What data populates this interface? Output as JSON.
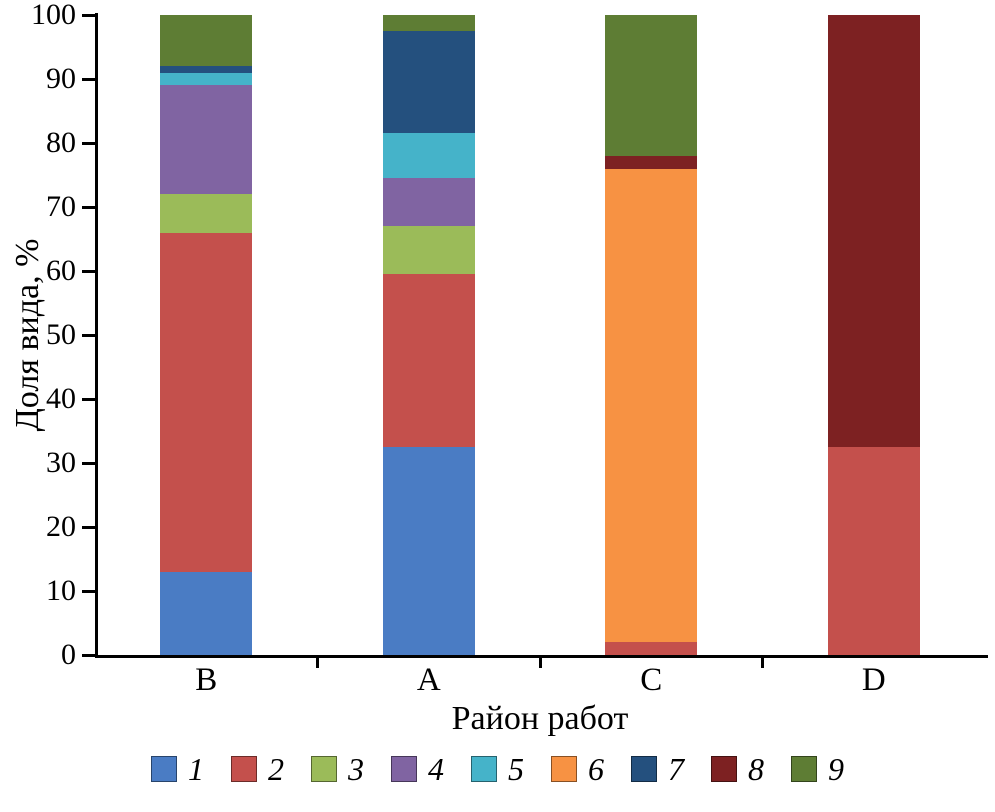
{
  "chart_data": {
    "type": "bar",
    "stacked": true,
    "title": "",
    "xlabel": "Район работ",
    "ylabel": "Доля вида, %",
    "ylim": [
      0,
      100
    ],
    "yticks": [
      0,
      10,
      20,
      30,
      40,
      50,
      60,
      70,
      80,
      90,
      100
    ],
    "grid": false,
    "legend_position": "bottom",
    "categories": [
      "B",
      "A",
      "C",
      "D"
    ],
    "series": [
      {
        "name": "1",
        "color": "#4a7cc4",
        "values": [
          13,
          32.5,
          0,
          0
        ]
      },
      {
        "name": "2",
        "color": "#c4504c",
        "values": [
          53,
          27,
          2,
          32.5
        ]
      },
      {
        "name": "3",
        "color": "#9bbb59",
        "values": [
          6,
          7.5,
          0,
          0
        ]
      },
      {
        "name": "4",
        "color": "#8064a2",
        "values": [
          17,
          7.5,
          0,
          0
        ]
      },
      {
        "name": "5",
        "color": "#45b3c9",
        "values": [
          2,
          7,
          0,
          0
        ]
      },
      {
        "name": "6",
        "color": "#f79243",
        "values": [
          0,
          0,
          74,
          0
        ]
      },
      {
        "name": "7",
        "color": "#24507e",
        "values": [
          1,
          16,
          0,
          0
        ]
      },
      {
        "name": "8",
        "color": "#7d2122",
        "values": [
          0,
          0,
          2,
          67.5
        ]
      },
      {
        "name": "9",
        "color": "#5e7d34",
        "values": [
          8,
          2.5,
          22,
          0
        ]
      }
    ]
  }
}
